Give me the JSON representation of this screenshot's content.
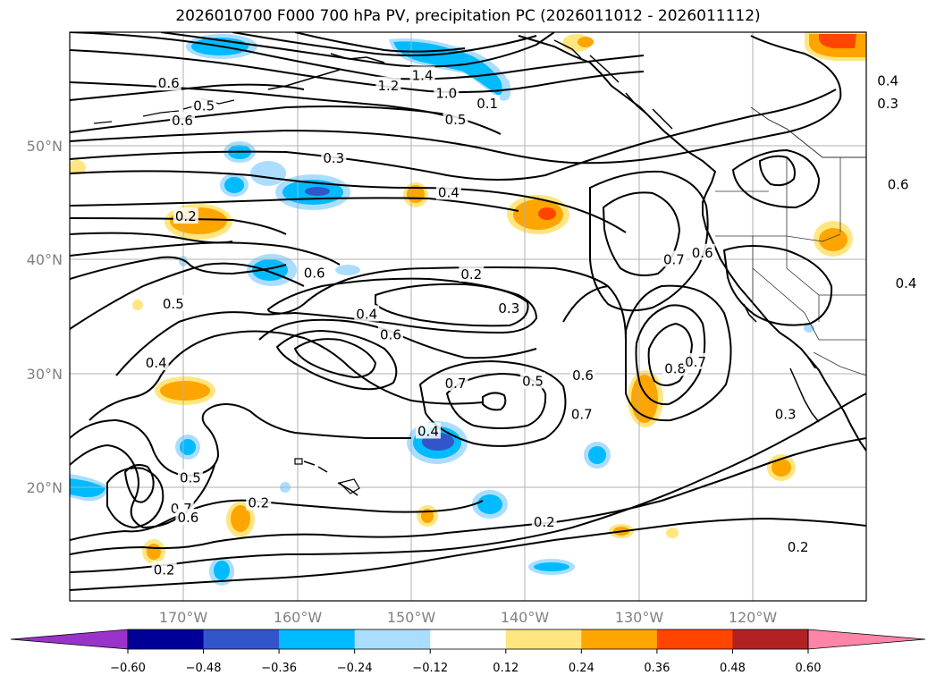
{
  "title": "2026010700 F000 700 hPa PV, precipitation PC (2026011012 - 2026011112)",
  "map": {
    "lon_range": [
      -180,
      -110
    ],
    "lat_range": [
      10,
      60
    ],
    "lat_labels": [
      "50°N",
      "40°N",
      "30°N",
      "20°N"
    ],
    "lon_labels": [
      "170°W",
      "160°W",
      "150°W",
      "140°W",
      "130°W",
      "120°W"
    ],
    "gridlines": true,
    "contour_labels": [
      {
        "text": "1.4",
        "lon": -149,
        "lat": 56.2
      },
      {
        "text": "1.2",
        "lon": -152,
        "lat": 55.3
      },
      {
        "text": "1.0",
        "lon": -146.9,
        "lat": 54.6
      },
      {
        "text": "0.1",
        "lon": -143.3,
        "lat": 53.7
      },
      {
        "text": "0.6",
        "lon": -171.3,
        "lat": 55.5
      },
      {
        "text": "0.5",
        "lon": -168.2,
        "lat": 53.5
      },
      {
        "text": "0.6",
        "lon": -170.1,
        "lat": 52.2
      },
      {
        "text": "0.5",
        "lon": -146.1,
        "lat": 52.3
      },
      {
        "text": "0.4",
        "lon": -108.1,
        "lat": 55.7
      },
      {
        "text": "0.3",
        "lon": -108.1,
        "lat": 53.7
      },
      {
        "text": "0.3",
        "lon": -156.8,
        "lat": 48.9
      },
      {
        "text": "0.4",
        "lon": -146.7,
        "lat": 45.9
      },
      {
        "text": "0.2",
        "lon": -169.8,
        "lat": 43.8
      },
      {
        "text": "0.6",
        "lon": -107.2,
        "lat": 46.6
      },
      {
        "text": "0.7",
        "lon": -126.9,
        "lat": 40.0
      },
      {
        "text": "0.6",
        "lon": -124.4,
        "lat": 40.6
      },
      {
        "text": "0.4",
        "lon": -106.5,
        "lat": 37.9
      },
      {
        "text": "0.2",
        "lon": -144.7,
        "lat": 38.7
      },
      {
        "text": "0.5",
        "lon": -170.9,
        "lat": 36.1
      },
      {
        "text": "0.6",
        "lon": -158.5,
        "lat": 38.8
      },
      {
        "text": "0.4",
        "lon": -153.9,
        "lat": 35.2
      },
      {
        "text": "0.3",
        "lon": -141.4,
        "lat": 35.7
      },
      {
        "text": "0.6",
        "lon": -151.8,
        "lat": 33.4
      },
      {
        "text": "0.4",
        "lon": -172.4,
        "lat": 30.9
      },
      {
        "text": "0.7",
        "lon": -146.1,
        "lat": 29.1
      },
      {
        "text": "0.5",
        "lon": -139.3,
        "lat": 29.3
      },
      {
        "text": "0.6",
        "lon": -134.9,
        "lat": 29.8
      },
      {
        "text": "0.8",
        "lon": -126.8,
        "lat": 30.4
      },
      {
        "text": "0.7",
        "lon": -125.0,
        "lat": 31.0
      },
      {
        "text": "0.7",
        "lon": -135.0,
        "lat": 26.4
      },
      {
        "text": "0.4",
        "lon": -148.5,
        "lat": 24.9
      },
      {
        "text": "0.3",
        "lon": -117.1,
        "lat": 26.4
      },
      {
        "text": "0.5",
        "lon": -169.4,
        "lat": 20.8
      },
      {
        "text": "0.7",
        "lon": -170.2,
        "lat": 18.1
      },
      {
        "text": "0.6",
        "lon": -169.6,
        "lat": 17.3
      },
      {
        "text": "0.2",
        "lon": -163.4,
        "lat": 18.6
      },
      {
        "text": "0.2",
        "lon": -138.3,
        "lat": 16.9
      },
      {
        "text": "0.2",
        "lon": -171.7,
        "lat": 12.7
      },
      {
        "text": "0.2",
        "lon": -116.0,
        "lat": 14.7
      }
    ]
  },
  "colorbar": {
    "ticks": [
      "−0.60",
      "−0.48",
      "−0.36",
      "−0.24",
      "−0.12",
      "0.12",
      "0.24",
      "0.36",
      "0.48",
      "0.60"
    ],
    "colors": [
      "#9933cc",
      "#000099",
      "#3355cc",
      "#00bbff",
      "#aaddff",
      "#ffffff",
      "#ffe680",
      "#ffa500",
      "#ff4500",
      "#b22222",
      "#ff85a8"
    ],
    "extend": "both"
  },
  "colors": {
    "contour": "#000000",
    "positive_light": "#ffe680",
    "positive": "#ffa500",
    "positive_strong": "#ff4500",
    "negative_light": "#aaddff",
    "negative": "#00bbff",
    "negative_strong": "#3355cc"
  }
}
